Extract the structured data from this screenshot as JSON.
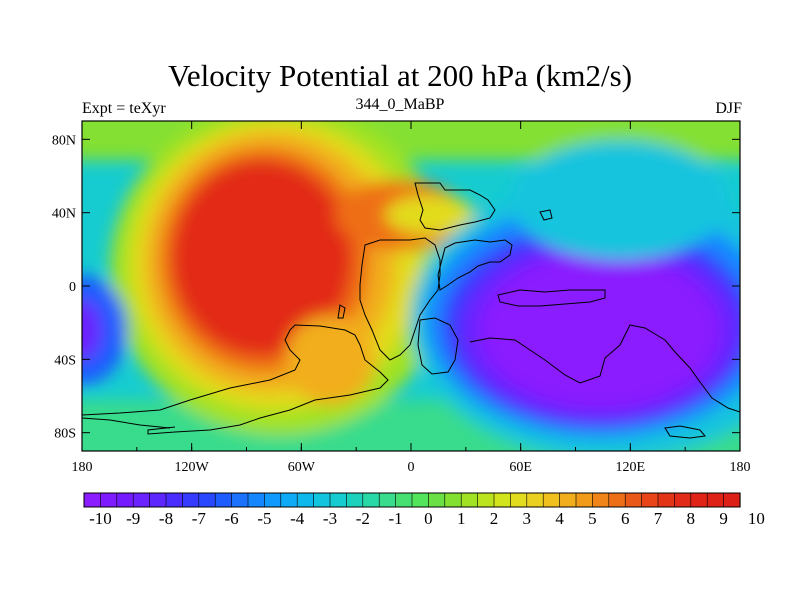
{
  "title": "Velocity Potential at 200 hPa (km2/s)",
  "left_string": "Expt = teXyr",
  "center_string": "344_0_MaBP",
  "right_string": "DJF",
  "chart_data": {
    "type": "heatmap",
    "projection": "cylindrical-equidistant",
    "variable": "Velocity Potential at 200 hPa",
    "units": "km2/s",
    "x_ticks": [
      "180",
      "120W",
      "60W",
      "0",
      "60E",
      "120E",
      "180"
    ],
    "y_ticks": [
      "80N",
      "40N",
      "0",
      "40S",
      "80S"
    ],
    "xlim": [
      -180,
      180
    ],
    "ylim": [
      -90,
      90
    ],
    "colorbar_levels": [
      -10,
      -9.5,
      -9,
      -8.5,
      -8,
      -7.5,
      -7,
      -6.5,
      -6,
      -5.5,
      -5,
      -4.5,
      -4,
      -3.5,
      -3,
      -2.5,
      -2,
      -1.5,
      -1,
      -0.5,
      0,
      0.5,
      1,
      1.5,
      2,
      2.5,
      3,
      3.5,
      4,
      4.5,
      5,
      5.5,
      6,
      6.5,
      7,
      7.5,
      8,
      8.5,
      9,
      9.5,
      10
    ],
    "colorbar_labels": [
      "-10",
      "-9",
      "-8",
      "-7",
      "-6",
      "-5",
      "-4",
      "-3",
      "-2",
      "-1",
      "0",
      "1",
      "2",
      "3",
      "4",
      "5",
      "6",
      "7",
      "8",
      "9",
      "10"
    ],
    "colorbar_colors": [
      "#8a1cff",
      "#7f1cff",
      "#741cff",
      "#6a22ff",
      "#5e26ff",
      "#4a2cff",
      "#363aff",
      "#2848ff",
      "#1e5cff",
      "#1a72ff",
      "#1486ff",
      "#109aff",
      "#0eaaf6",
      "#0eb8ec",
      "#12c4de",
      "#16ccd0",
      "#1cd2bc",
      "#28d8a6",
      "#38dc8c",
      "#46e072",
      "#52e45a",
      "#6ae044",
      "#84e030",
      "#a2e224",
      "#bce41e",
      "#d2e41c",
      "#e2dc1e",
      "#ead020",
      "#f0c01e",
      "#f2ae1c",
      "#f29a1a",
      "#f08418",
      "#ee6e18",
      "#ea5818",
      "#e84418",
      "#e43418",
      "#e22a18",
      "#e02418",
      "#de2218",
      "#dc2018"
    ],
    "features": [
      {
        "name": "positive anomaly",
        "lon": -85,
        "lat": 15,
        "value": 10
      },
      {
        "name": "positive lobe",
        "lon": 15,
        "lat": 30,
        "value": 7
      },
      {
        "name": "negative anomaly",
        "lon": 115,
        "lat": -5,
        "value": -10
      },
      {
        "name": "west-edge negative",
        "lon": -180,
        "lat": -15,
        "value": -6
      }
    ]
  }
}
